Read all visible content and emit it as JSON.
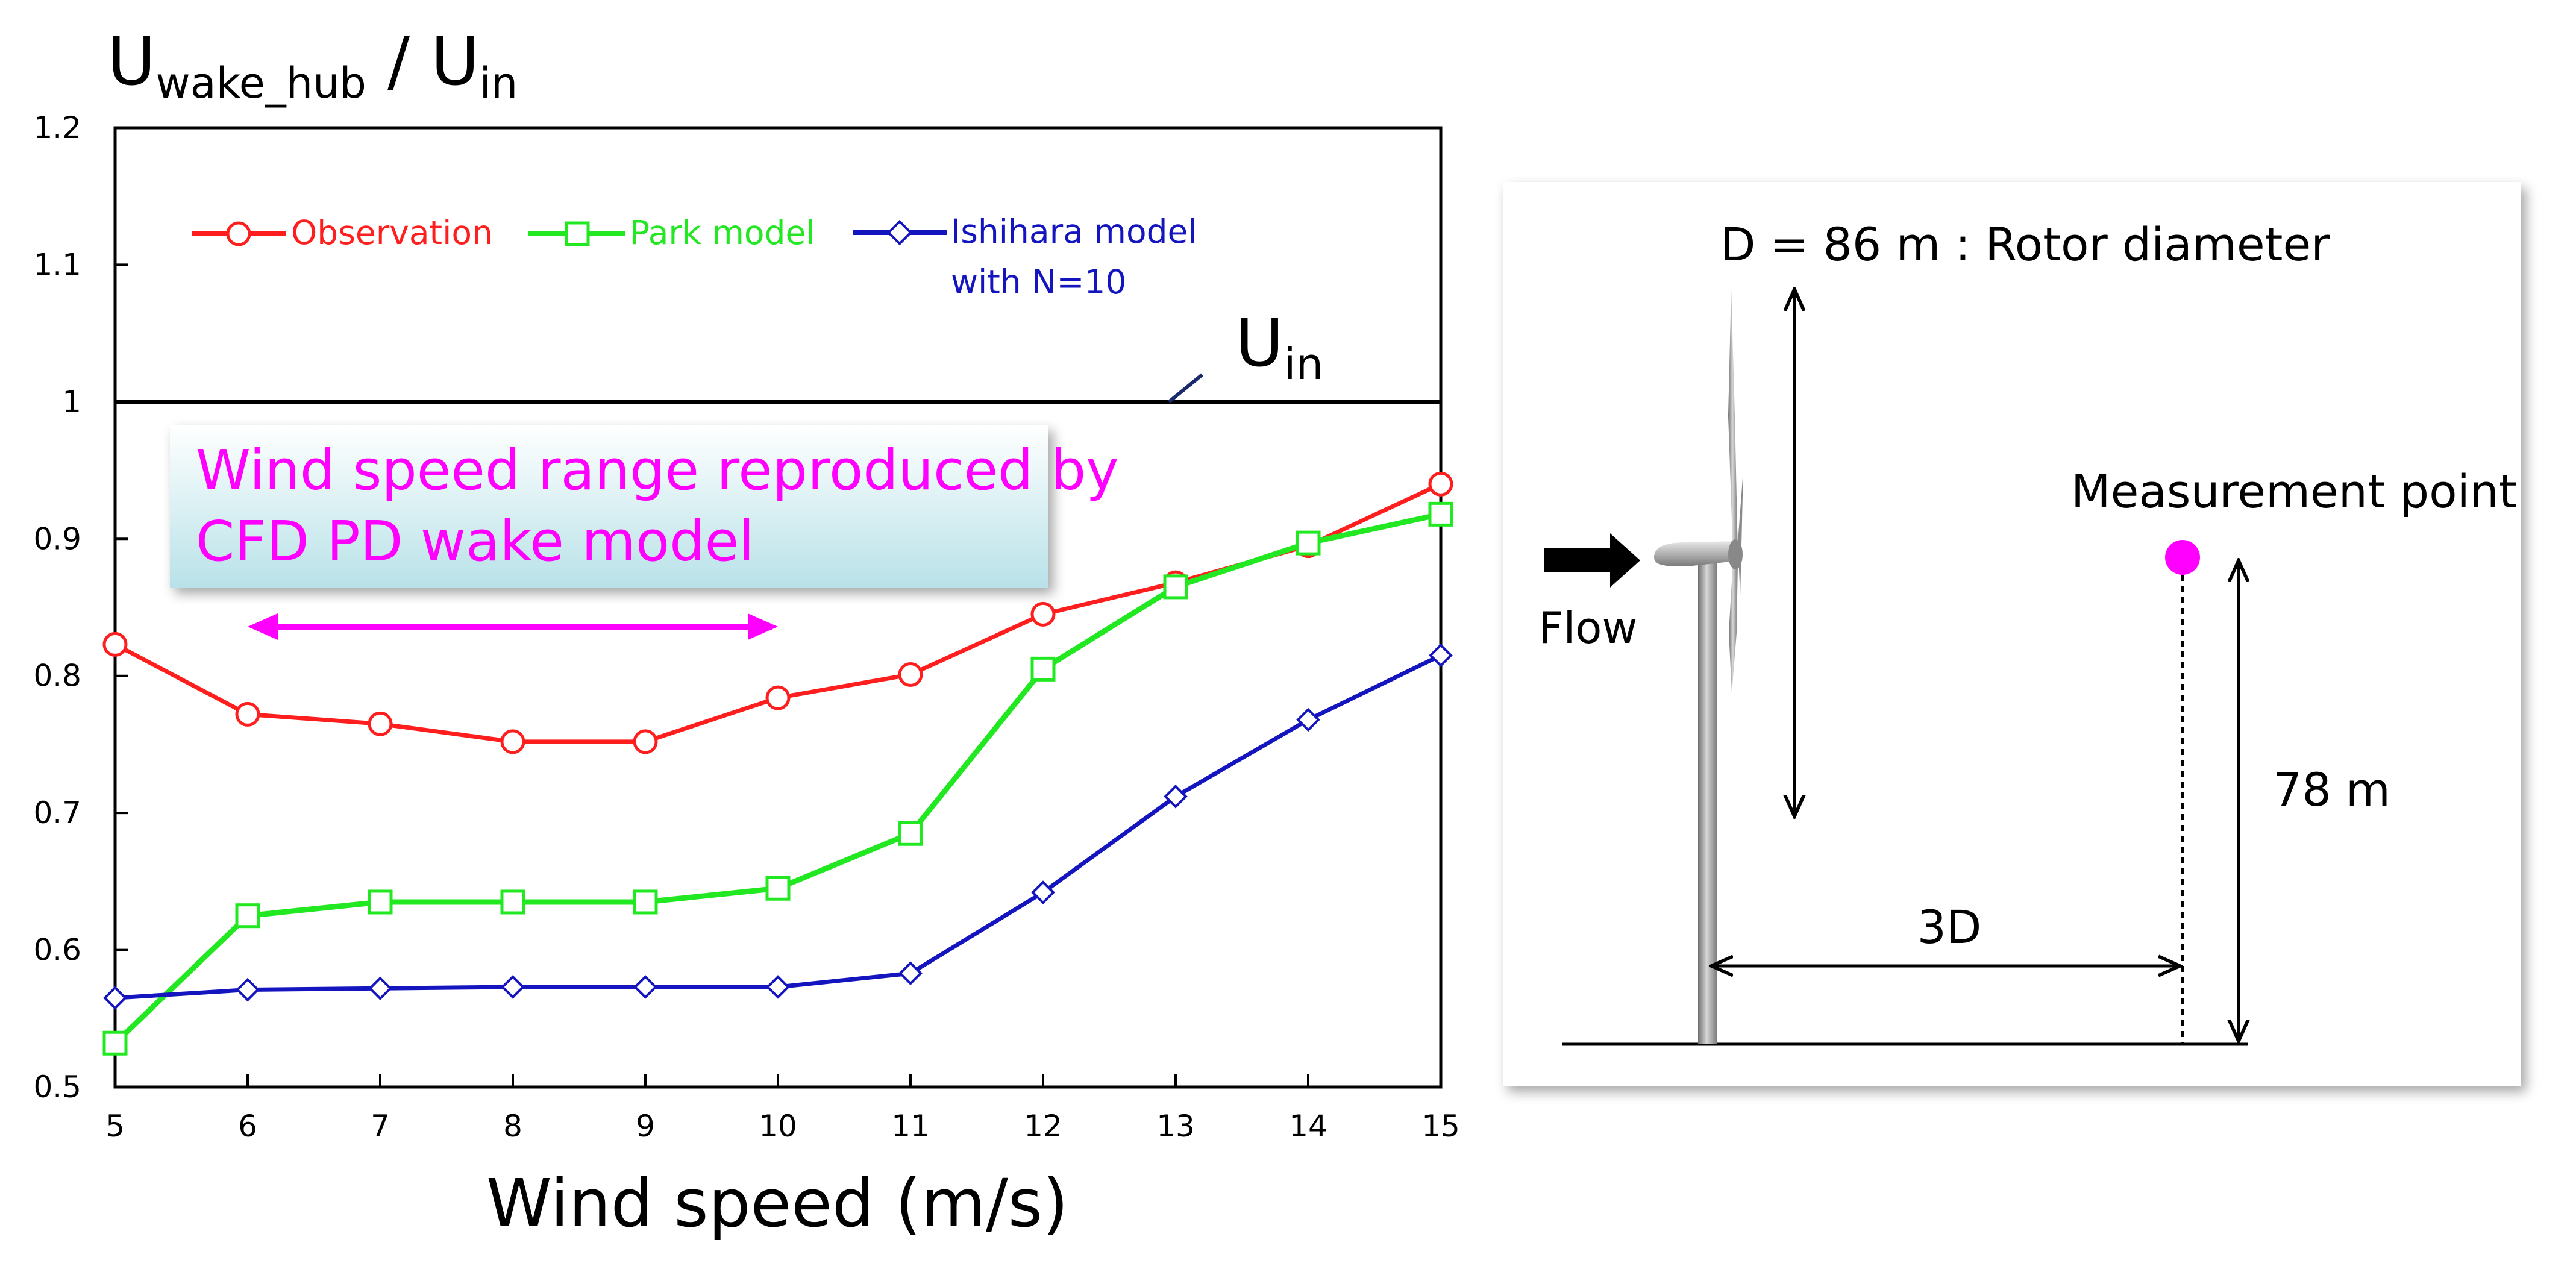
{
  "chart_data": {
    "type": "line",
    "x": [
      5,
      6,
      7,
      8,
      9,
      10,
      11,
      12,
      13,
      14,
      15
    ],
    "xlim": [
      5,
      15
    ],
    "ylim": [
      0.5,
      1.2
    ],
    "xticks": [
      "5",
      "6",
      "7",
      "8",
      "9",
      "10",
      "11",
      "12",
      "13",
      "14",
      "15"
    ],
    "yticks": [
      "0.5",
      "0.6",
      "0.7",
      "0.8",
      "0.9",
      "1",
      "1.1",
      "1.2"
    ],
    "xlabel": "Wind speed (m/s)",
    "ylabel": {
      "main1": "U",
      "sub1": "wake_hub",
      "slash": " / ",
      "main2": "U",
      "sub2": "in"
    },
    "series": [
      {
        "name": "Observation",
        "color": "#ff1e1e",
        "marker": "circle",
        "values": [
          0.823,
          0.772,
          0.765,
          0.752,
          0.752,
          0.784,
          0.801,
          0.845,
          0.868,
          0.895,
          0.94
        ]
      },
      {
        "name": "Park model",
        "color": "#22e822",
        "marker": "square",
        "values": [
          0.532,
          0.625,
          0.635,
          0.635,
          0.635,
          0.645,
          0.685,
          0.805,
          0.865,
          0.897,
          0.918
        ]
      },
      {
        "name": "Ishihara model",
        "name_line2": "with N=10",
        "color": "#1515c0",
        "marker": "diamond",
        "values": [
          0.565,
          0.571,
          0.572,
          0.573,
          0.573,
          0.573,
          0.583,
          0.642,
          0.712,
          0.768,
          0.815
        ]
      }
    ],
    "reference_line": {
      "y": 1.0,
      "label_main": "U",
      "label_sub": "in"
    },
    "annotation": {
      "line1": "Wind speed range reproduced by",
      "line2": "CFD PD wake model",
      "range": [
        6,
        10
      ],
      "text_color": "#ff00ff"
    }
  },
  "diagram": {
    "rotor_label": "D = 86 m : Rotor diameter",
    "measurement_label": "Measurement point",
    "flow_label": "Flow",
    "height_label": "78 m",
    "distance_label": "3D",
    "marker_color": "#ff00ff"
  }
}
